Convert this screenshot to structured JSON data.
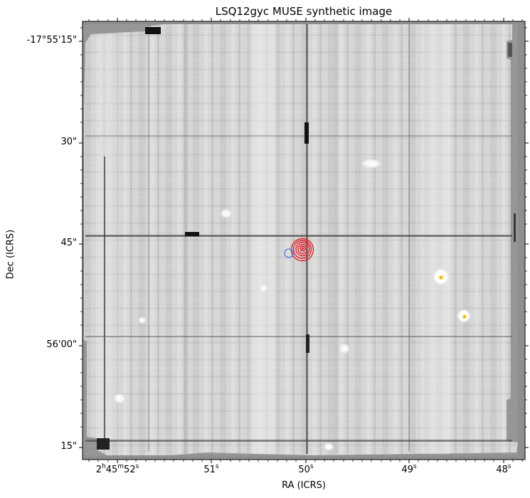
{
  "figure": {
    "title": "LSQ12gyc MUSE synthetic image",
    "xlabel": "RA (ICRS)",
    "ylabel": "Dec (ICRS)"
  },
  "axes": {
    "y_ticks": [
      {
        "label": "-17°55'15\""
      },
      {
        "label": "30\""
      },
      {
        "label": "45\""
      },
      {
        "label": "56'00\""
      },
      {
        "label": "15\""
      }
    ],
    "x_ticks": [
      {
        "h": "2",
        "m": "45",
        "s": "52"
      },
      {
        "s": "51"
      },
      {
        "s": "50"
      },
      {
        "s": "49"
      },
      {
        "s": "48"
      }
    ]
  },
  "markers": {
    "host_circle_color": "#e0202a",
    "sn_circle_color": "#5a70e0",
    "star_dot_color": "#f2c200"
  }
}
